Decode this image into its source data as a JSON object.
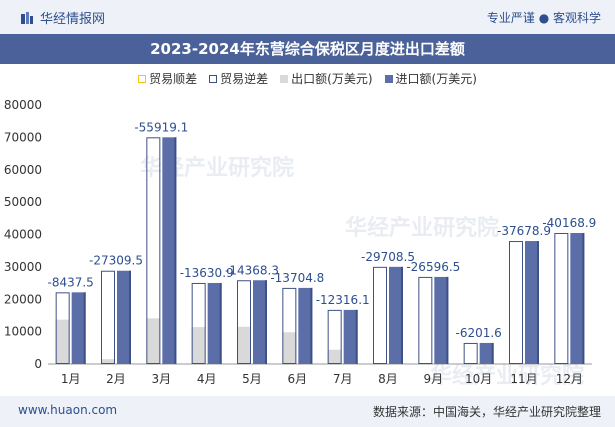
{
  "header": {
    "brand": "华经情报网",
    "tagline": "专业严谨 ● 客观科学"
  },
  "watermark": "华经产业研究院",
  "colors": {
    "export_bar": "#d9d9d9",
    "import_bar": "#5b6ea8",
    "import_edge": "#3e5187",
    "deficit_outline": "#3e5187",
    "surplus_outline": "#f5c518",
    "axis_text": "#333333",
    "label_text": "#2d4f8f"
  },
  "chart_data": {
    "type": "bar",
    "title": "2023-2024年东营综合保税区月度进出口差额",
    "categories": [
      "1月",
      "2月",
      "3月",
      "4月",
      "5月",
      "6月",
      "7月",
      "8月",
      "9月",
      "10月",
      "11月",
      "12月"
    ],
    "series": [
      {
        "name": "贸易顺差",
        "values": [
          null,
          null,
          null,
          null,
          null,
          null,
          null,
          null,
          null,
          null,
          null,
          null
        ]
      },
      {
        "name": "贸易逆差",
        "values": [
          8437.5,
          27309.5,
          55919.1,
          13630.9,
          14368.3,
          13704.8,
          12316.1,
          29708.5,
          26596.5,
          6201.6,
          37678.9,
          40168.9
        ]
      },
      {
        "name": "出口额(万美元)",
        "values": [
          13700,
          1500,
          14100,
          11400,
          11500,
          9800,
          4400,
          300,
          300,
          300,
          300,
          300
        ]
      },
      {
        "name": "进口额(万美元)",
        "values": [
          22137.5,
          28809.5,
          70019.1,
          25030.9,
          25868.3,
          23504.8,
          16716.1,
          30008.5,
          26896.5,
          6501.6,
          37978.9,
          40468.9
        ]
      }
    ],
    "data_labels": [
      "-8437.5",
      "-27309.5",
      "-55919.1",
      "-13630.9",
      "-14368.3",
      "-13704.8",
      "-12316.1",
      "-29708.5",
      "-26596.5",
      "-6201.6",
      "-37678.9",
      "-40168.9"
    ],
    "ylim": [
      0,
      80000
    ],
    "yticks": [
      0,
      10000,
      20000,
      30000,
      40000,
      50000,
      60000,
      70000,
      80000
    ],
    "legend": "top-center",
    "grid": false
  },
  "footer": {
    "site": "www.huaon.com",
    "source": "数据来源：中国海关，华经产业研究院整理"
  }
}
